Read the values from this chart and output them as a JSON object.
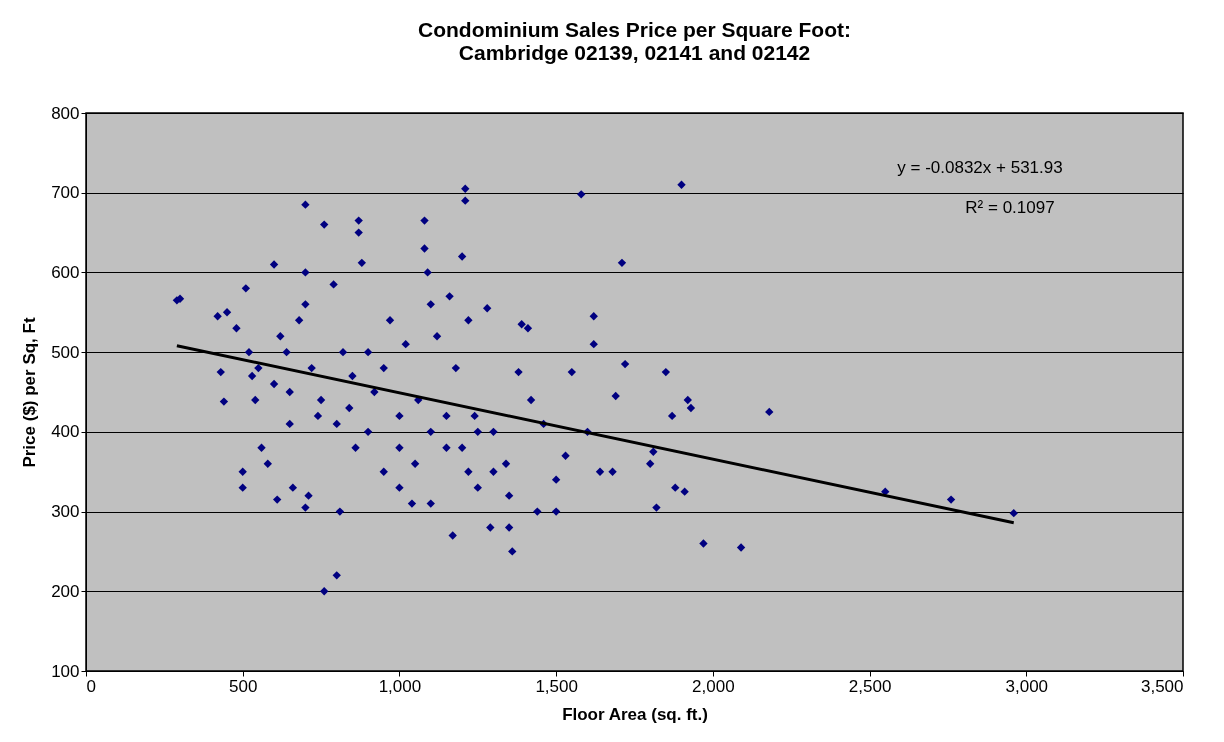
{
  "chart_data": {
    "type": "scatter",
    "title": "Condominium Sales Price per Square Foot:\nCambridge 02139, 02141 and 02142",
    "xlabel": "Floor Area (sq. ft.)",
    "ylabel": "Price ($) per Sq, Ft",
    "xlim": [
      0,
      3500
    ],
    "ylim": [
      100,
      800
    ],
    "xticks": [
      0,
      500,
      {
        "value": 1000,
        "label": "1,000"
      },
      {
        "value": 1500,
        "label": "1,500"
      },
      {
        "value": 2000,
        "label": "2,000"
      },
      {
        "value": 2500,
        "label": "2,500"
      },
      {
        "value": 3000,
        "label": "3,000"
      },
      {
        "value": 3500,
        "label": "3,500"
      }
    ],
    "yticks": [
      100,
      200,
      300,
      400,
      500,
      600,
      700,
      800
    ],
    "grid": "y",
    "legend": false,
    "marker": "diamond",
    "annotations": [
      "y = -0.0832x + 531.93",
      "R² = 0.1097"
    ],
    "series": [
      {
        "color": "#000080",
        "x": [
          290,
          300,
          420,
          430,
          440,
          450,
          480,
          500,
          500,
          510,
          520,
          530,
          540,
          560,
          580,
          600,
          610,
          620,
          640,
          650,
          660,
          680,
          700,
          700,
          700,
          700,
          710,
          720,
          740,
          760,
          760,
          790,
          800,
          810,
          820,
          840,
          860,
          870,
          870,
          880,
          900,
          920,
          950,
          970,
          1000,
          1000,
          1020,
          1040,
          1060,
          1080,
          1080,
          1090,
          1100,
          1100,
          1120,
          1150,
          1160,
          1170,
          1180,
          1200,
          1210,
          1210,
          1220,
          1220,
          1240,
          1250,
          1280,
          1290,
          1300,
          1340,
          1350,
          1360,
          1380,
          1390,
          1410,
          1420,
          1440,
          1460,
          1500,
          1500,
          1530,
          1550,
          1580,
          1600,
          1620,
          1620,
          1640,
          1680,
          1690,
          1710,
          1720,
          1800,
          1810,
          1820,
          1850,
          1870,
          1880,
          1900,
          1910,
          1920,
          1930,
          1970,
          2090,
          2180,
          2550,
          2760,
          2960,
          550,
          600,
          650,
          750,
          800,
          850,
          900,
          950,
          1000,
          1050,
          1100,
          1150,
          1200,
          1250,
          1300,
          1350
        ],
        "values": [
          565,
          567,
          545,
          475,
          438,
          550,
          530,
          330,
          350,
          580,
          500,
          470,
          440,
          380,
          360,
          610,
          315,
          520,
          500,
          450,
          330,
          540,
          685,
          600,
          560,
          305,
          320,
          480,
          420,
          200,
          660,
          585,
          220,
          300,
          500,
          430,
          380,
          665,
          650,
          612,
          500,
          450,
          350,
          540,
          420,
          330,
          510,
          310,
          440,
          665,
          630,
          600,
          560,
          310,
          520,
          380,
          570,
          270,
          480,
          620,
          705,
          690,
          540,
          350,
          420,
          330,
          555,
          280,
          400,
          360,
          280,
          250,
          475,
          535,
          530,
          440,
          300,
          410,
          300,
          340,
          370,
          475,
          698,
          400,
          545,
          510,
          350,
          350,
          445,
          612,
          485,
          360,
          375,
          305,
          475,
          420,
          330,
          710,
          325,
          440,
          430,
          260,
          255,
          425,
          325,
          315,
          298,
          480,
          460,
          410,
          440,
          410,
          470,
          400,
          480,
          380,
          360,
          400,
          420,
          380,
          400,
          350,
          320
        ]
      },
      {
        "type": "line",
        "marker": "none",
        "color": "#000000",
        "x": [
          290,
          2960
        ],
        "values": [
          508,
          286
        ]
      }
    ]
  }
}
